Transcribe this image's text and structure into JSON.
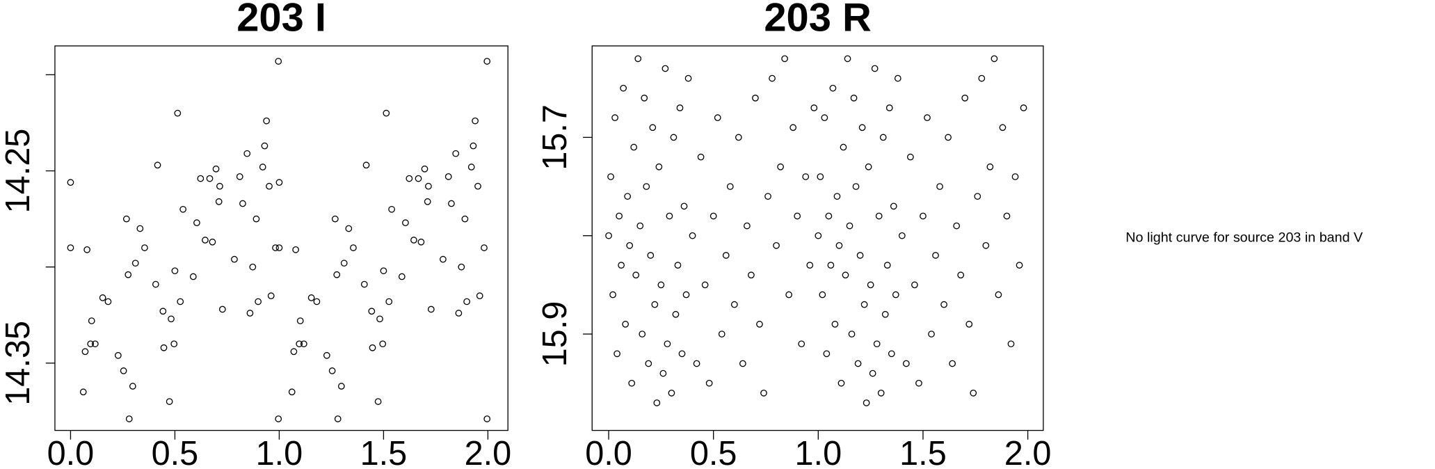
{
  "chart_data": [
    {
      "type": "scatter",
      "title": "203 I",
      "color": "#000000",
      "x": [
        0,
        0,
        0.061,
        0.07,
        0.079,
        0.096,
        0.101,
        0.118,
        0.154,
        0.18,
        0.228,
        0.254,
        0.268,
        0.276,
        0.281,
        0.298,
        0.311,
        0.333,
        0.355,
        0.408,
        0.417,
        0.443,
        0.447,
        0.474,
        0.482,
        0.496,
        0.5,
        0.513,
        0.526,
        0.539,
        0.588,
        0.605,
        0.623,
        0.645,
        0.667,
        0.68,
        0.697,
        0.711,
        0.715,
        0.728,
        0.785,
        0.811,
        0.825,
        0.846,
        0.86,
        0.873,
        0.89,
        0.899,
        0.921,
        0.93,
        0.939,
        0.952,
        0.961,
        0.982,
        0.996,
        0.996,
        1,
        1,
        1.061,
        1.07,
        1.079,
        1.096,
        1.101,
        1.118,
        1.154,
        1.18,
        1.228,
        1.254,
        1.268,
        1.276,
        1.281,
        1.298,
        1.311,
        1.333,
        1.355,
        1.408,
        1.417,
        1.443,
        1.447,
        1.474,
        1.482,
        1.496,
        1.5,
        1.513,
        1.526,
        1.539,
        1.588,
        1.605,
        1.623,
        1.645,
        1.667,
        1.68,
        1.697,
        1.711,
        1.715,
        1.728,
        1.785,
        1.811,
        1.825,
        1.846,
        1.86,
        1.873,
        1.89,
        1.899,
        1.921,
        1.93,
        1.939,
        1.952,
        1.961,
        1.982,
        1.996,
        1.996
      ],
      "values": [
        14.256,
        14.29,
        14.365,
        14.344,
        14.291,
        14.34,
        14.328,
        14.34,
        14.316,
        14.318,
        14.346,
        14.354,
        14.275,
        14.304,
        14.379,
        14.362,
        14.298,
        14.28,
        14.29,
        14.309,
        14.247,
        14.323,
        14.342,
        14.37,
        14.327,
        14.34,
        14.302,
        14.22,
        14.318,
        14.27,
        14.305,
        14.277,
        14.254,
        14.286,
        14.254,
        14.287,
        14.249,
        14.266,
        14.258,
        14.322,
        14.296,
        14.253,
        14.267,
        14.241,
        14.324,
        14.3,
        14.275,
        14.318,
        14.248,
        14.237,
        14.224,
        14.258,
        14.315,
        14.29,
        14.193,
        14.379,
        14.256,
        14.29,
        14.365,
        14.344,
        14.291,
        14.34,
        14.328,
        14.34,
        14.316,
        14.318,
        14.346,
        14.354,
        14.275,
        14.304,
        14.379,
        14.362,
        14.298,
        14.28,
        14.29,
        14.309,
        14.247,
        14.323,
        14.342,
        14.37,
        14.327,
        14.34,
        14.302,
        14.22,
        14.318,
        14.27,
        14.305,
        14.277,
        14.254,
        14.286,
        14.254,
        14.287,
        14.249,
        14.266,
        14.258,
        14.322,
        14.296,
        14.253,
        14.267,
        14.241,
        14.324,
        14.3,
        14.275,
        14.318,
        14.248,
        14.237,
        14.224,
        14.258,
        14.315,
        14.29,
        14.193,
        14.379
      ],
      "xlim": [
        -0.075,
        2.096
      ],
      "ylim": [
        14.385,
        14.185
      ],
      "xticks": [
        {
          "value": 0,
          "label": "0.0"
        },
        {
          "value": 0.5,
          "label": "0.5"
        },
        {
          "value": 1,
          "label": "1.0"
        },
        {
          "value": 1.5,
          "label": "1.5"
        },
        {
          "value": 2,
          "label": "2.0"
        }
      ],
      "yticks": [
        14.25,
        14.35
      ],
      "yminorticks": [
        14.2,
        14.3
      ]
    },
    {
      "type": "scatter",
      "title": "203 R",
      "color": "#000000",
      "x": [
        0,
        0.01,
        0.02,
        0.03,
        0.04,
        0.05,
        0.06,
        0.07,
        0.08,
        0.09,
        0.1,
        0.11,
        0.12,
        0.13,
        0.14,
        0.15,
        0.16,
        0.17,
        0.18,
        0.19,
        0.2,
        0.21,
        0.22,
        0.23,
        0.24,
        0.25,
        0.26,
        0.27,
        0.28,
        0.29,
        0.3,
        0.31,
        0.32,
        0.33,
        0.34,
        0.35,
        0.36,
        0.37,
        0.38,
        0.4,
        0.42,
        0.44,
        0.46,
        0.48,
        0.5,
        0.52,
        0.54,
        0.56,
        0.58,
        0.6,
        0.62,
        0.64,
        0.66,
        0.68,
        0.7,
        0.72,
        0.74,
        0.76,
        0.78,
        0.8,
        0.82,
        0.84,
        0.86,
        0.88,
        0.9,
        0.92,
        0.94,
        0.96,
        0.98,
        1,
        1.01,
        1.02,
        1.03,
        1.04,
        1.05,
        1.06,
        1.07,
        1.08,
        1.09,
        1.1,
        1.11,
        1.12,
        1.13,
        1.14,
        1.15,
        1.16,
        1.17,
        1.18,
        1.19,
        1.2,
        1.21,
        1.22,
        1.23,
        1.24,
        1.25,
        1.26,
        1.27,
        1.28,
        1.29,
        1.3,
        1.31,
        1.32,
        1.33,
        1.34,
        1.35,
        1.36,
        1.37,
        1.38,
        1.4,
        1.42,
        1.44,
        1.46,
        1.48,
        1.5,
        1.52,
        1.54,
        1.56,
        1.58,
        1.6,
        1.62,
        1.64,
        1.66,
        1.68,
        1.7,
        1.72,
        1.74,
        1.76,
        1.78,
        1.8,
        1.82,
        1.84,
        1.86,
        1.88,
        1.9,
        1.92,
        1.94,
        1.96,
        1.98
      ],
      "values": [
        15.8,
        15.74,
        15.86,
        15.68,
        15.92,
        15.78,
        15.83,
        15.65,
        15.89,
        15.76,
        15.81,
        15.95,
        15.71,
        15.84,
        15.62,
        15.79,
        15.9,
        15.66,
        15.75,
        15.93,
        15.82,
        15.69,
        15.87,
        15.97,
        15.73,
        15.85,
        15.94,
        15.63,
        15.91,
        15.78,
        15.96,
        15.7,
        15.88,
        15.83,
        15.67,
        15.92,
        15.77,
        15.86,
        15.64,
        15.8,
        15.93,
        15.72,
        15.85,
        15.95,
        15.78,
        15.68,
        15.9,
        15.82,
        15.75,
        15.87,
        15.7,
        15.93,
        15.79,
        15.84,
        15.66,
        15.89,
        15.96,
        15.76,
        15.64,
        15.81,
        15.73,
        15.62,
        15.86,
        15.69,
        15.78,
        15.91,
        15.74,
        15.83,
        15.67,
        15.8,
        15.74,
        15.86,
        15.68,
        15.92,
        15.78,
        15.83,
        15.65,
        15.89,
        15.76,
        15.81,
        15.95,
        15.71,
        15.84,
        15.62,
        15.79,
        15.9,
        15.66,
        15.75,
        15.93,
        15.82,
        15.69,
        15.87,
        15.97,
        15.73,
        15.85,
        15.94,
        15.63,
        15.91,
        15.78,
        15.96,
        15.7,
        15.88,
        15.83,
        15.67,
        15.92,
        15.77,
        15.86,
        15.64,
        15.8,
        15.93,
        15.72,
        15.85,
        15.95,
        15.78,
        15.68,
        15.9,
        15.82,
        15.75,
        15.87,
        15.7,
        15.93,
        15.79,
        15.84,
        15.66,
        15.89,
        15.96,
        15.76,
        15.64,
        15.81,
        15.73,
        15.62,
        15.86,
        15.69,
        15.78,
        15.91,
        15.74,
        15.83,
        15.67
      ],
      "xlim": [
        -0.079,
        2.074
      ],
      "ylim": [
        15.998,
        15.607
      ],
      "xticks": [
        {
          "value": 0,
          "label": "0.0"
        },
        {
          "value": 0.5,
          "label": "0.5"
        },
        {
          "value": 1,
          "label": "1.0"
        },
        {
          "value": 1.5,
          "label": "1.5"
        },
        {
          "value": 2,
          "label": "2.0"
        }
      ],
      "yticks": [
        15.7,
        15.9
      ],
      "yminorticks": [
        15.8
      ]
    }
  ],
  "message": "No light curve for source 203 in band V"
}
